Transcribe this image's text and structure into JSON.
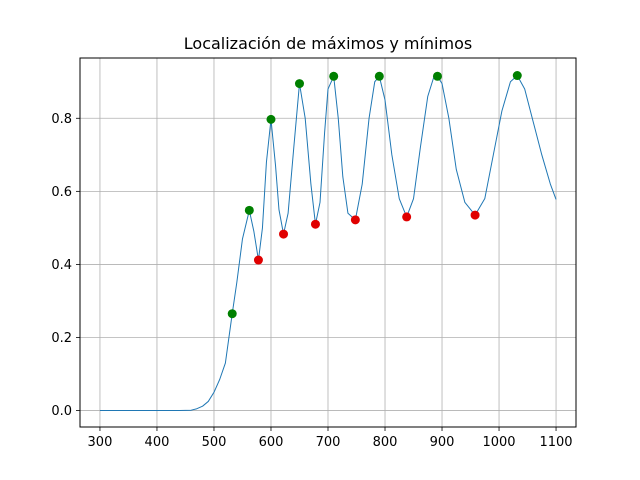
{
  "chart_data": {
    "type": "line",
    "title": "Localización de máximos y mínimos",
    "xlabel": "",
    "ylabel": "",
    "xlim": [
      265,
      1135
    ],
    "ylim": [
      -0.045,
      0.965
    ],
    "xticks": [
      300,
      400,
      500,
      600,
      700,
      800,
      900,
      1000,
      1100
    ],
    "yticks": [
      0.0,
      0.2,
      0.4,
      0.6,
      0.8
    ],
    "grid": true,
    "colors": {
      "line": "#1f77b4",
      "max": "#008000",
      "min": "#e00000",
      "grid": "#b0b0b0"
    },
    "series": [
      {
        "style": "line",
        "x": [
          300,
          350,
          400,
          440,
          460,
          470,
          480,
          490,
          500,
          510,
          520,
          532,
          540,
          550,
          562,
          570,
          578,
          585,
          592,
          600,
          608,
          614,
          622,
          630,
          640,
          650,
          660,
          670,
          678,
          686,
          694,
          700,
          710,
          718,
          726,
          735,
          748,
          760,
          772,
          782,
          790,
          800,
          812,
          825,
          838,
          850,
          862,
          875,
          885,
          892,
          900,
          912,
          925,
          940,
          958,
          975,
          990,
          1005,
          1020,
          1032,
          1045,
          1060,
          1075,
          1090,
          1100
        ],
        "y": [
          0.0,
          0.0,
          0.0,
          0.0,
          0.001,
          0.005,
          0.012,
          0.025,
          0.05,
          0.085,
          0.13,
          0.265,
          0.35,
          0.47,
          0.548,
          0.49,
          0.412,
          0.5,
          0.68,
          0.797,
          0.67,
          0.55,
          0.483,
          0.54,
          0.72,
          0.895,
          0.8,
          0.62,
          0.51,
          0.57,
          0.76,
          0.88,
          0.915,
          0.8,
          0.64,
          0.54,
          0.522,
          0.62,
          0.8,
          0.9,
          0.915,
          0.85,
          0.7,
          0.58,
          0.53,
          0.58,
          0.72,
          0.86,
          0.91,
          0.915,
          0.895,
          0.8,
          0.66,
          0.57,
          0.535,
          0.58,
          0.7,
          0.82,
          0.9,
          0.917,
          0.88,
          0.79,
          0.7,
          0.62,
          0.578
        ]
      },
      {
        "style": "markers",
        "x": [
          532,
          562,
          600,
          650,
          710,
          790,
          892,
          1032
        ],
        "y": [
          0.265,
          0.548,
          0.797,
          0.895,
          0.915,
          0.915,
          0.915,
          0.917
        ]
      },
      {
        "style": "markers",
        "x": [
          578,
          622,
          678,
          748,
          838,
          958
        ],
        "y": [
          0.412,
          0.483,
          0.51,
          0.522,
          0.53,
          0.535
        ]
      }
    ]
  }
}
